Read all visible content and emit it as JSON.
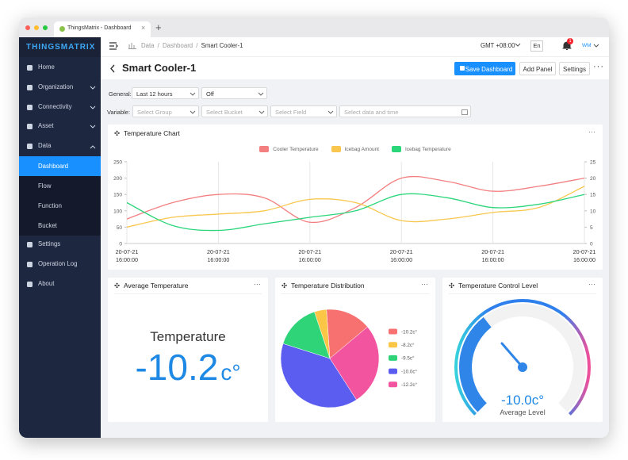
{
  "browser": {
    "tab_title": "ThingsMatrix - Dashboard"
  },
  "sidebar": {
    "logo": "THINGSMATRIX",
    "items": [
      "Home",
      "Organization",
      "Connectivity",
      "Asset",
      "Data"
    ],
    "subitems": [
      "Dashboard",
      "Flow",
      "Function",
      "Bucket"
    ],
    "bottom_items": [
      "Settings",
      "Operation Log",
      "About"
    ]
  },
  "header": {
    "breadcrumb": [
      "Data",
      "Dashboard",
      "Smart Cooler-1"
    ],
    "timezone": "GMT +08:00",
    "language": "En",
    "notifications": 1,
    "user": "WM"
  },
  "toolbar": {
    "title": "Smart Cooler-1",
    "buttons": [
      "Save Dashboard",
      "Add Panel",
      "Settings"
    ]
  },
  "filters": {
    "general_label": "General:",
    "general": [
      "Last 12 hours",
      "Off"
    ],
    "variable_label": "Variable:",
    "variable": [
      "Select Group",
      "Select Bucket",
      "Select Field",
      "Select data and time"
    ]
  },
  "chart_data": [
    {
      "type": "line",
      "title": "Temperature Chart",
      "categories": [
        "20-07-21 16:00:00",
        null,
        "20-07-21 16:00:00",
        null,
        "20-07-21 16:00:00",
        null,
        "20-07-21 16:00:00",
        null,
        "20-07-21 16:00:00",
        null,
        "20-07-21 16:00:00"
      ],
      "series": [
        {
          "name": "Cooler Temperature",
          "color": "#f37f80",
          "values": [
            75,
            125,
            150,
            140,
            65,
            110,
            200,
            190,
            160,
            175,
            200
          ]
        },
        {
          "name": "Icebag Amount",
          "color": "#f9c74f",
          "values": [
            50,
            80,
            90,
            100,
            135,
            125,
            70,
            75,
            95,
            110,
            175
          ]
        },
        {
          "name": "Icebag Temperature",
          "color": "#2bd67b",
          "values": [
            125,
            55,
            40,
            60,
            80,
            100,
            150,
            140,
            110,
            120,
            150
          ]
        }
      ],
      "ylim": [
        0,
        250
      ],
      "yticks": [
        0,
        50,
        100,
        150,
        200,
        250
      ],
      "y2lim": [
        0,
        25
      ],
      "y2ticks": [
        0,
        5,
        10,
        15,
        20,
        25
      ],
      "grid": "x",
      "legend": "top"
    },
    {
      "type": "pie",
      "title": "Temperature Distribution",
      "categories": [
        "-10.2c°",
        "-8.2c°",
        "-9.5c°",
        "-10.0c°",
        "-12.2c°"
      ],
      "values": [
        15,
        4,
        15,
        39,
        27
      ],
      "colors": [
        "#f87171",
        "#fbc646",
        "#2ed477",
        "#5b5cf0",
        "#f2549f"
      ],
      "legend": "right"
    }
  ],
  "panels": {
    "average": {
      "title": "Average Temperature",
      "label": "Temperature",
      "value": -10.2,
      "unit": "c°"
    },
    "gauge": {
      "title": "Temperature Control Level",
      "value": "-10.0c°",
      "caption": "Average Level"
    }
  }
}
